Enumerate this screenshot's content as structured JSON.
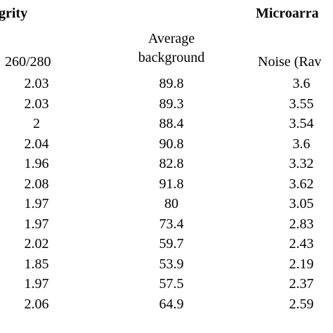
{
  "table": {
    "group_headers": {
      "left": "grity",
      "right": "Microarra"
    },
    "column_headers": {
      "ratio": "260/280",
      "background_line1": "Average",
      "background_line2": "background",
      "noise": "Noise (Rav"
    },
    "rows": [
      {
        "ratio": "2.03",
        "background": "89.8",
        "noise": "3.6"
      },
      {
        "ratio": "2.03",
        "background": "89.3",
        "noise": "3.55"
      },
      {
        "ratio": "2",
        "background": "88.4",
        "noise": "3.54"
      },
      {
        "ratio": "2.04",
        "background": "90.8",
        "noise": "3.6"
      },
      {
        "ratio": "1.96",
        "background": "82.8",
        "noise": "3.32"
      },
      {
        "ratio": "2.08",
        "background": "91.8",
        "noise": "3.62"
      },
      {
        "ratio": "1.97",
        "background": "80",
        "noise": "3.05"
      },
      {
        "ratio": "1.97",
        "background": "73.4",
        "noise": "2.83"
      },
      {
        "ratio": "2.02",
        "background": "59.7",
        "noise": "2.43"
      },
      {
        "ratio": "1.85",
        "background": "53.9",
        "noise": "2.19"
      },
      {
        "ratio": "1.97",
        "background": "57.5",
        "noise": "2.37"
      },
      {
        "ratio": "2.06",
        "background": "64.9",
        "noise": "2.59"
      }
    ]
  }
}
